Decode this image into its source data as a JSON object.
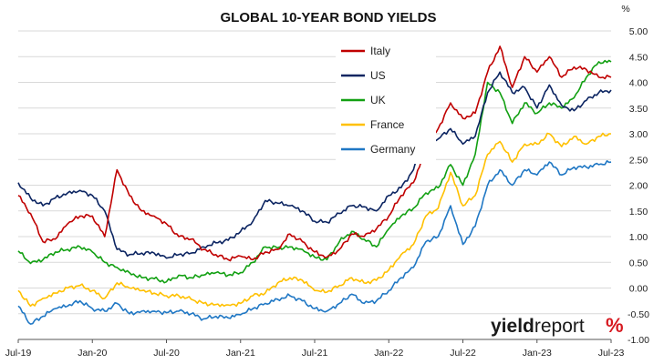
{
  "chart_data": {
    "type": "line",
    "title": "GLOBAL 10-YEAR BOND YIELDS",
    "ylabel": "%",
    "ylim": [
      -1.0,
      5.0
    ],
    "yticks": [
      "5.00",
      "4.50",
      "4.00",
      "3.50",
      "3.00",
      "2.50",
      "2.00",
      "1.50",
      "1.00",
      "0.50",
      "0.00",
      "-0.50",
      "-1.00"
    ],
    "y_axis_side": "right",
    "xticks": [
      "Jul-19",
      "Jan-20",
      "Jul-20",
      "Jan-21",
      "Jul-21",
      "Jan-22",
      "Jul-22",
      "Jan-23",
      "Jul-23"
    ],
    "x": [
      "Jul-19",
      "Aug-19",
      "Sep-19",
      "Oct-19",
      "Nov-19",
      "Dec-19",
      "Jan-20",
      "Feb-20",
      "Mar-20",
      "Apr-20",
      "May-20",
      "Jun-20",
      "Jul-20",
      "Aug-20",
      "Sep-20",
      "Oct-20",
      "Nov-20",
      "Dec-20",
      "Jan-21",
      "Feb-21",
      "Mar-21",
      "Apr-21",
      "May-21",
      "Jun-21",
      "Jul-21",
      "Aug-21",
      "Sep-21",
      "Oct-21",
      "Nov-21",
      "Dec-21",
      "Jan-22",
      "Feb-22",
      "Mar-22",
      "Apr-22",
      "May-22",
      "Jun-22",
      "Jul-22",
      "Aug-22",
      "Sep-22",
      "Oct-22",
      "Nov-22",
      "Dec-22",
      "Jan-23",
      "Feb-23",
      "Mar-23",
      "Apr-23",
      "May-23",
      "Jun-23",
      "Jul-23"
    ],
    "grid": true,
    "legend_position": "top-center",
    "series": [
      {
        "name": "Italy",
        "color": "#c00000",
        "values": [
          1.8,
          1.45,
          0.9,
          0.95,
          1.25,
          1.4,
          1.4,
          1.0,
          2.3,
          1.8,
          1.5,
          1.4,
          1.25,
          1.0,
          0.95,
          0.75,
          0.65,
          0.55,
          0.62,
          0.55,
          0.7,
          0.75,
          1.05,
          0.9,
          0.7,
          0.6,
          0.75,
          1.05,
          1.0,
          1.15,
          1.4,
          1.8,
          2.05,
          2.7,
          3.1,
          3.6,
          3.3,
          3.4,
          4.2,
          4.7,
          3.9,
          4.5,
          4.2,
          4.5,
          4.1,
          4.3,
          4.25,
          4.1,
          4.1
        ]
      },
      {
        "name": "US",
        "color": "#0b2461",
        "values": [
          2.05,
          1.75,
          1.6,
          1.75,
          1.85,
          1.9,
          1.8,
          1.5,
          0.75,
          0.65,
          0.68,
          0.68,
          0.58,
          0.65,
          0.68,
          0.8,
          0.88,
          0.93,
          1.1,
          1.3,
          1.7,
          1.65,
          1.6,
          1.5,
          1.3,
          1.28,
          1.45,
          1.6,
          1.58,
          1.5,
          1.8,
          1.95,
          2.3,
          2.9,
          2.9,
          3.1,
          2.8,
          2.95,
          3.8,
          4.2,
          3.8,
          3.9,
          3.5,
          3.95,
          3.55,
          3.45,
          3.65,
          3.8,
          3.85
        ]
      },
      {
        "name": "UK",
        "color": "#12a012",
        "values": [
          0.72,
          0.48,
          0.55,
          0.7,
          0.75,
          0.8,
          0.7,
          0.5,
          0.4,
          0.3,
          0.2,
          0.18,
          0.12,
          0.25,
          0.2,
          0.25,
          0.3,
          0.25,
          0.3,
          0.5,
          0.8,
          0.78,
          0.8,
          0.75,
          0.6,
          0.55,
          0.9,
          1.1,
          0.95,
          0.8,
          1.15,
          1.4,
          1.55,
          1.85,
          1.95,
          2.4,
          2.0,
          2.6,
          4.0,
          3.8,
          3.2,
          3.6,
          3.4,
          3.6,
          3.5,
          3.7,
          4.1,
          4.4,
          4.4
        ]
      },
      {
        "name": "France",
        "color": "#ffc000",
        "values": [
          -0.05,
          -0.35,
          -0.2,
          -0.1,
          0.0,
          0.05,
          -0.05,
          -0.2,
          0.1,
          0.0,
          -0.05,
          -0.1,
          -0.15,
          -0.15,
          -0.22,
          -0.3,
          -0.32,
          -0.33,
          -0.3,
          -0.15,
          -0.1,
          0.1,
          0.2,
          0.15,
          -0.05,
          -0.08,
          0.05,
          0.2,
          0.1,
          0.15,
          0.35,
          0.65,
          0.85,
          1.4,
          1.55,
          2.25,
          1.6,
          1.8,
          2.6,
          2.85,
          2.45,
          2.8,
          2.8,
          3.0,
          2.75,
          2.95,
          2.8,
          2.95,
          3.0
        ]
      },
      {
        "name": "Germany",
        "color": "#1f77c4",
        "values": [
          -0.35,
          -0.7,
          -0.55,
          -0.4,
          -0.35,
          -0.25,
          -0.4,
          -0.45,
          -0.3,
          -0.5,
          -0.45,
          -0.45,
          -0.48,
          -0.45,
          -0.5,
          -0.6,
          -0.55,
          -0.58,
          -0.52,
          -0.4,
          -0.3,
          -0.22,
          -0.15,
          -0.25,
          -0.4,
          -0.45,
          -0.3,
          -0.12,
          -0.3,
          -0.25,
          -0.05,
          0.2,
          0.4,
          0.9,
          1.0,
          1.6,
          0.85,
          1.2,
          2.0,
          2.3,
          2.0,
          2.3,
          2.2,
          2.45,
          2.2,
          2.35,
          2.35,
          2.4,
          2.45
        ]
      }
    ]
  },
  "brand": {
    "part1": "yield",
    "part2": "report",
    "symbol": "%"
  }
}
